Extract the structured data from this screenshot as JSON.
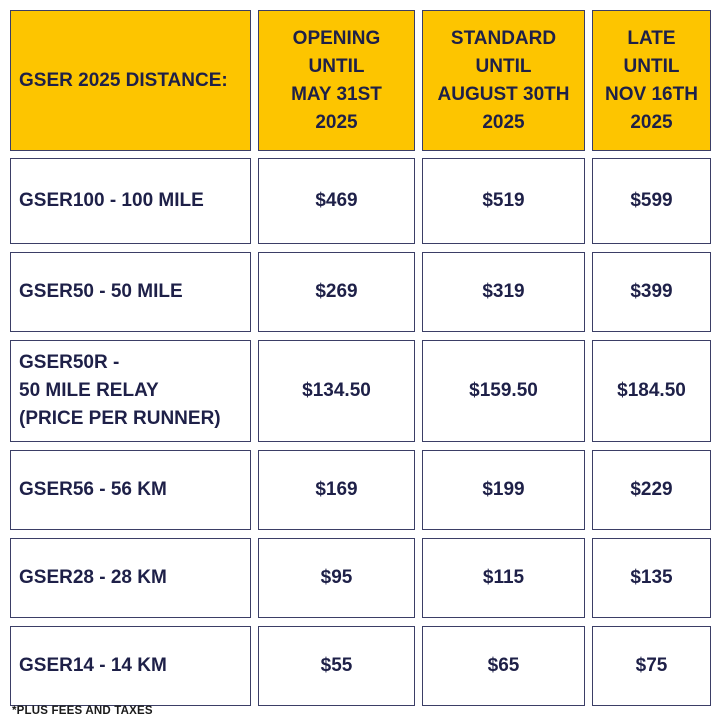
{
  "colors": {
    "header_bg": "#fdc500",
    "text": "#1e2048",
    "border": "#3b3e66"
  },
  "header": {
    "distance_label": "GSER 2025 DISTANCE:",
    "columns": [
      "OPENING\nUNTIL\nMAY 31ST\n2025",
      "STANDARD\nUNTIL\nAUGUST 30TH\n2025",
      "LATE\nUNTIL\nNOV 16TH\n2025"
    ]
  },
  "rows": [
    {
      "distance": "GSER100 - 100 MILE",
      "prices": [
        "$469",
        "$519",
        "$599"
      ]
    },
    {
      "distance": "GSER50 - 50 MILE",
      "prices": [
        "$269",
        "$319",
        "$399"
      ]
    },
    {
      "distance": "GSER50R -\n50 MILE RELAY\n(PRICE PER RUNNER)",
      "prices": [
        "$134.50",
        "$159.50",
        "$184.50"
      ]
    },
    {
      "distance": "GSER56 - 56 KM",
      "prices": [
        "$169",
        "$199",
        "$229"
      ]
    },
    {
      "distance": "GSER28 - 28 KM",
      "prices": [
        "$95",
        "$115",
        "$135"
      ]
    },
    {
      "distance": "GSER14 - 14 KM",
      "prices": [
        "$55",
        "$65",
        "$75"
      ]
    }
  ],
  "footnote": "*PLUS FEES AND TAXES"
}
